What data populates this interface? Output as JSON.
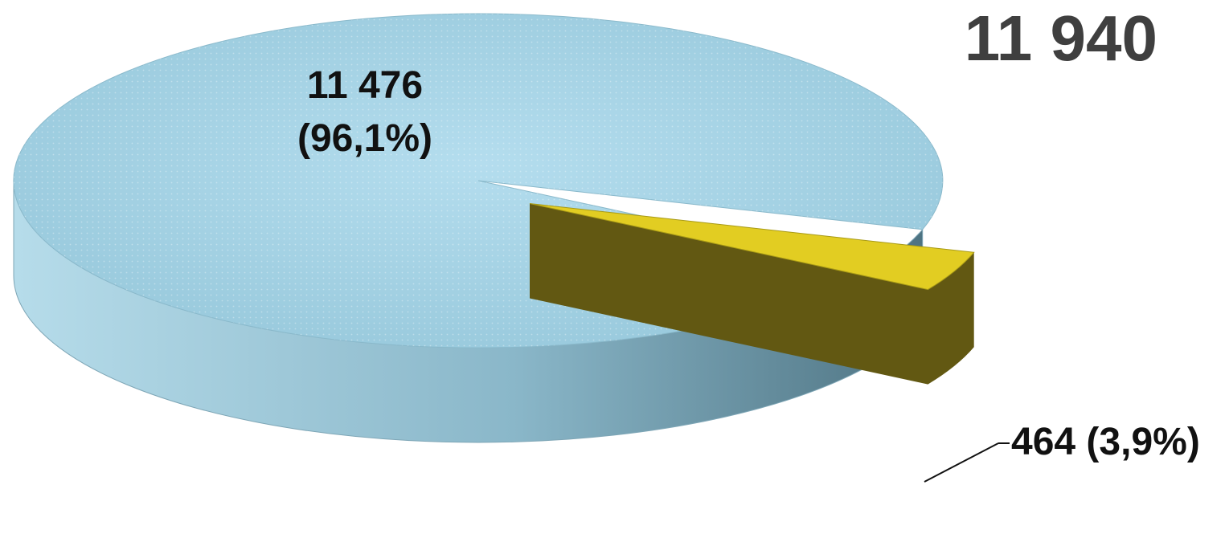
{
  "chart_data": {
    "type": "pie",
    "total": "11 940",
    "slices": [
      {
        "label": "11 476",
        "line2": "(96,1%)",
        "value": 11476,
        "percent": 96.1,
        "color": "#a9d6e8"
      },
      {
        "label": "464 (3,9%)",
        "value": 464,
        "percent": 3.9,
        "color": "#e2cd22"
      }
    ]
  }
}
